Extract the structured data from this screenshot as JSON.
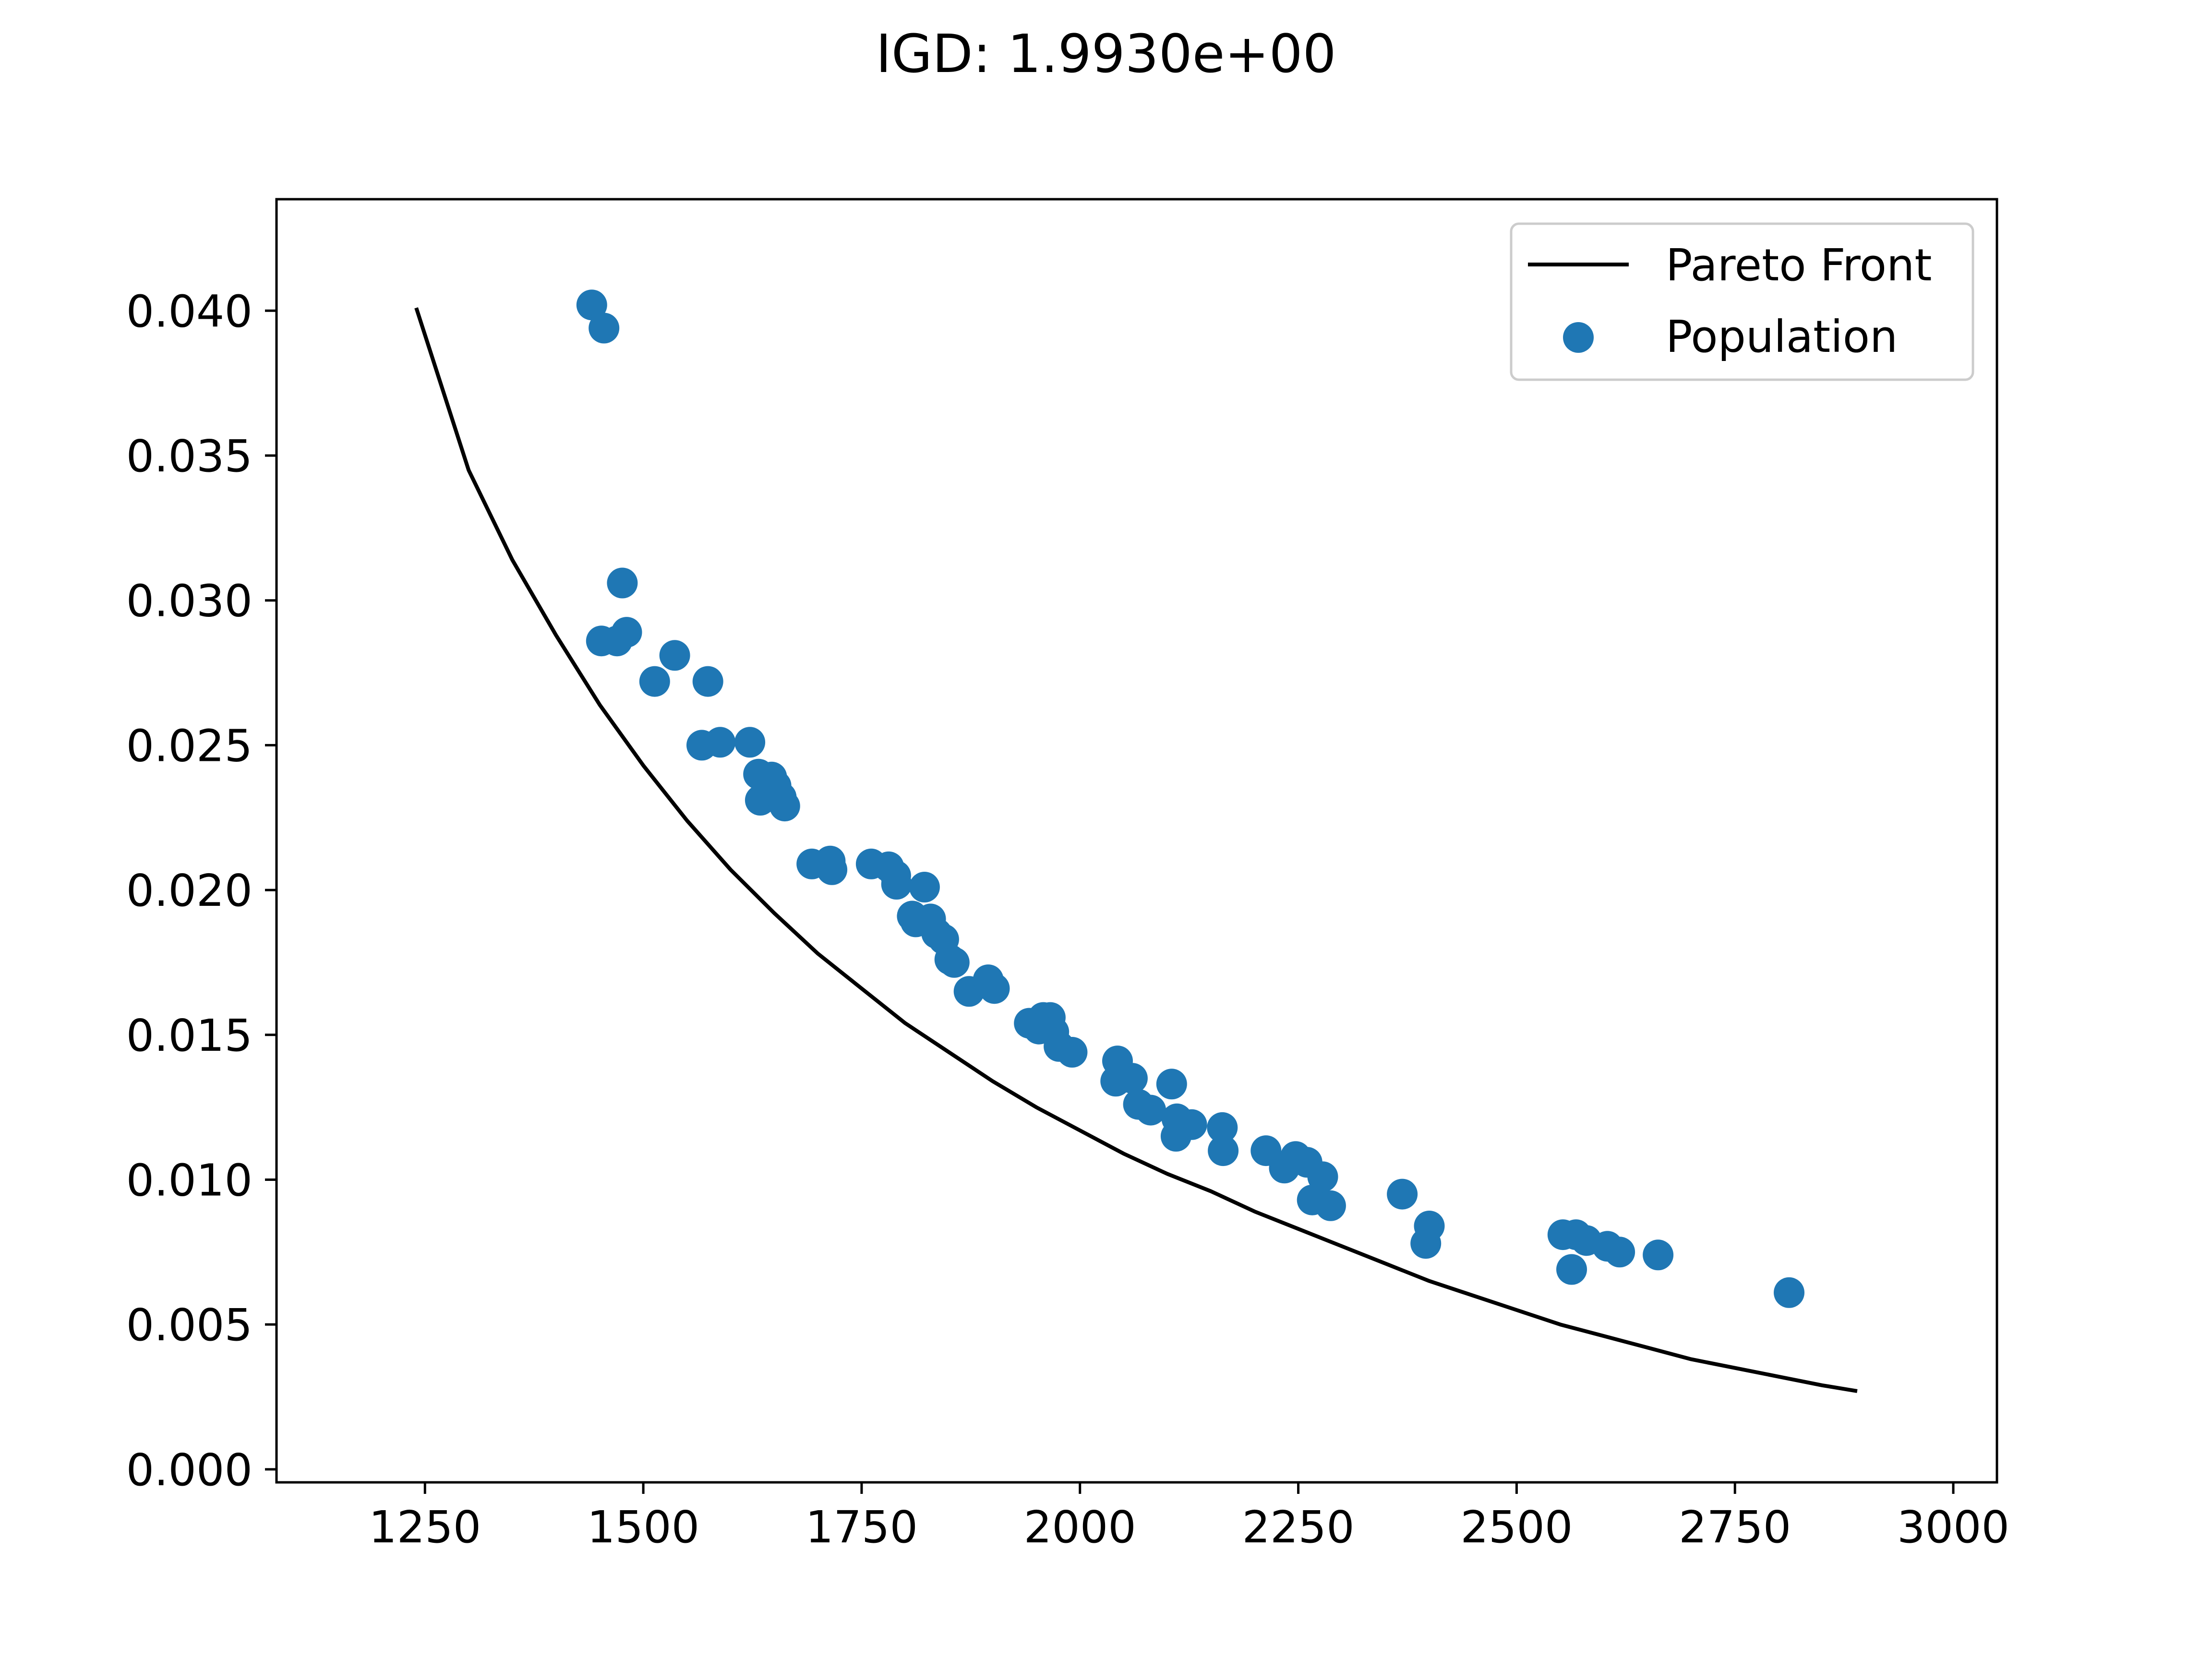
{
  "chart_data": {
    "type": "scatter",
    "title": "IGD: 1.9930e+00",
    "xlabel": "",
    "ylabel": "",
    "xlim": [
      1080,
      3050
    ],
    "ylim": [
      -0.00045,
      0.04385
    ],
    "x_ticks": [
      1250,
      1500,
      1750,
      2000,
      2250,
      2500,
      2750,
      3000
    ],
    "x_tick_labels": [
      "1250",
      "1500",
      "1750",
      "2000",
      "2250",
      "2500",
      "2750",
      "3000"
    ],
    "y_ticks": [
      0.0,
      0.005,
      0.01,
      0.015,
      0.02,
      0.025,
      0.03,
      0.035,
      0.04
    ],
    "y_tick_labels": [
      "0.000",
      "0.005",
      "0.010",
      "0.015",
      "0.020",
      "0.025",
      "0.030",
      "0.035",
      "0.040"
    ],
    "grid": false,
    "legend_position": "upper right",
    "series": [
      {
        "name": "Pareto Front",
        "kind": "line",
        "color": "#000000",
        "points": [
          [
            1240,
            0.0401
          ],
          [
            1300,
            0.0345
          ],
          [
            1350,
            0.0314
          ],
          [
            1400,
            0.0288
          ],
          [
            1450,
            0.0264
          ],
          [
            1500,
            0.0243
          ],
          [
            1550,
            0.0224
          ],
          [
            1600,
            0.0207
          ],
          [
            1650,
            0.0192
          ],
          [
            1700,
            0.0178
          ],
          [
            1750,
            0.0166
          ],
          [
            1800,
            0.0154
          ],
          [
            1850,
            0.0144
          ],
          [
            1900,
            0.0134
          ],
          [
            1950,
            0.0125
          ],
          [
            2000,
            0.0117
          ],
          [
            2050,
            0.0109
          ],
          [
            2100,
            0.0102
          ],
          [
            2150,
            0.0096
          ],
          [
            2200,
            0.0089
          ],
          [
            2250,
            0.0083
          ],
          [
            2300,
            0.0077
          ],
          [
            2350,
            0.0071
          ],
          [
            2400,
            0.0065
          ],
          [
            2450,
            0.006
          ],
          [
            2500,
            0.0055
          ],
          [
            2550,
            0.005
          ],
          [
            2600,
            0.0046
          ],
          [
            2650,
            0.0042
          ],
          [
            2700,
            0.0038
          ],
          [
            2750,
            0.0035
          ],
          [
            2800,
            0.0032
          ],
          [
            2850,
            0.0029
          ],
          [
            2890,
            0.0027
          ]
        ]
      },
      {
        "name": "Population",
        "kind": "scatter",
        "color": "#1f77b4",
        "points": [
          [
            1441,
            0.0402
          ],
          [
            1455,
            0.0394
          ],
          [
            1476,
            0.0306
          ],
          [
            1452,
            0.0286
          ],
          [
            1470,
            0.0286
          ],
          [
            1481,
            0.0289
          ],
          [
            1513,
            0.0272
          ],
          [
            1536,
            0.0281
          ],
          [
            1574,
            0.0272
          ],
          [
            1567,
            0.025
          ],
          [
            1588,
            0.0251
          ],
          [
            1622,
            0.0251
          ],
          [
            1632,
            0.024
          ],
          [
            1647,
            0.0239
          ],
          [
            1652,
            0.0236
          ],
          [
            1634,
            0.0231
          ],
          [
            1658,
            0.0232
          ],
          [
            1662,
            0.0229
          ],
          [
            1693,
            0.0209
          ],
          [
            1714,
            0.021
          ],
          [
            1716,
            0.0207
          ],
          [
            1761,
            0.0209
          ],
          [
            1781,
            0.0208
          ],
          [
            1789,
            0.0205
          ],
          [
            1790,
            0.0202
          ],
          [
            1822,
            0.0201
          ],
          [
            1808,
            0.0191
          ],
          [
            1812,
            0.0189
          ],
          [
            1829,
            0.019
          ],
          [
            1836,
            0.0185
          ],
          [
            1844,
            0.0183
          ],
          [
            1851,
            0.0176
          ],
          [
            1856,
            0.0175
          ],
          [
            1873,
            0.0165
          ],
          [
            1895,
            0.0169
          ],
          [
            1902,
            0.0166
          ],
          [
            1942,
            0.0154
          ],
          [
            1958,
            0.0156
          ],
          [
            1966,
            0.0156
          ],
          [
            1953,
            0.0152
          ],
          [
            1970,
            0.0151
          ],
          [
            1976,
            0.0146
          ],
          [
            1991,
            0.0144
          ],
          [
            2043,
            0.0141
          ],
          [
            2041,
            0.0134
          ],
          [
            2060,
            0.0135
          ],
          [
            2067,
            0.0126
          ],
          [
            2081,
            0.0124
          ],
          [
            2105,
            0.0133
          ],
          [
            2110,
            0.0115
          ],
          [
            2111,
            0.0121
          ],
          [
            2128,
            0.0119
          ],
          [
            2163,
            0.0118
          ],
          [
            2164,
            0.011
          ],
          [
            2213,
            0.011
          ],
          [
            2234,
            0.0104
          ],
          [
            2247,
            0.0108
          ],
          [
            2260,
            0.0106
          ],
          [
            2266,
            0.0093
          ],
          [
            2278,
            0.0101
          ],
          [
            2287,
            0.0091
          ],
          [
            2369,
            0.0095
          ],
          [
            2396,
            0.0078
          ],
          [
            2400,
            0.0084
          ],
          [
            2553,
            0.0081
          ],
          [
            2568,
            0.0081
          ],
          [
            2580,
            0.0079
          ],
          [
            2563,
            0.0069
          ],
          [
            2604,
            0.0077
          ],
          [
            2618,
            0.0075
          ],
          [
            2662,
            0.0074
          ],
          [
            2812,
            0.0061
          ]
        ]
      }
    ]
  }
}
